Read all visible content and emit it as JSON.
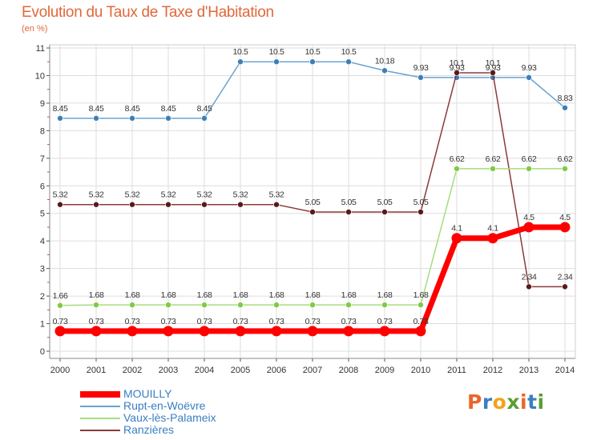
{
  "header": {
    "title": "Evolution du Taux de Taxe d'Habitation",
    "subtitle": "(en %)"
  },
  "logo": {
    "letters": [
      "P",
      "r",
      "o",
      "x",
      "i",
      "t",
      "i"
    ],
    "colors": [
      "#e8672a",
      "#3a7fc1",
      "#f0a31c",
      "#5a9e2f",
      "#e8672a",
      "#3a7fc1",
      "#5a9e2f"
    ]
  },
  "chart_data": {
    "type": "line",
    "title": "Evolution du Taux de Taxe d'Habitation",
    "subtitle": "(en %)",
    "xlabel": "",
    "ylabel": "",
    "x": [
      2000,
      2001,
      2002,
      2003,
      2004,
      2005,
      2006,
      2007,
      2008,
      2009,
      2010,
      2011,
      2012,
      2013,
      2014
    ],
    "x_tick_labels": [
      "2000",
      "2001",
      "2002",
      "2003",
      "2004",
      "2005",
      "2006",
      "2007",
      "2008",
      "2009",
      "2010",
      "2011",
      "2012",
      "2013",
      "2014"
    ],
    "ylim": [
      0,
      11
    ],
    "y_ticks": [
      0,
      1,
      2,
      3,
      4,
      5,
      6,
      7,
      8,
      9,
      10,
      11
    ],
    "y_tick_labels": [
      "0",
      "1",
      "2",
      "3",
      "4",
      "5",
      "6",
      "7",
      "8",
      "9",
      "10",
      "11"
    ],
    "grid": true,
    "legend_position": "bottom-left",
    "series": [
      {
        "name": "Rupt-en-Woëvre",
        "color": "#6aa3d2",
        "marker_color": "#3e7fb6",
        "values": [
          8.45,
          8.45,
          8.45,
          8.45,
          8.45,
          10.5,
          10.5,
          10.5,
          10.5,
          10.18,
          9.93,
          9.93,
          9.93,
          9.93,
          8.83
        ],
        "labels": [
          "8.45",
          "8.45",
          "8.45",
          "8.45",
          "8.45",
          "10.5",
          "10.5",
          "10.5",
          "10.5",
          "10.18",
          "9.93",
          "9.93",
          "9.93",
          "9.93",
          "8.83"
        ]
      },
      {
        "name": "Ranzières",
        "color": "#8b3a3a",
        "marker_color": "#5a1a1a",
        "values": [
          5.32,
          5.32,
          5.32,
          5.32,
          5.32,
          5.32,
          5.32,
          5.05,
          5.05,
          5.05,
          5.05,
          10.1,
          10.1,
          2.34,
          2.34
        ],
        "labels": [
          "5.32",
          "5.32",
          "5.32",
          "5.32",
          "5.32",
          "5.32",
          "5.32",
          "5.05",
          "5.05",
          "5.05",
          "5.05",
          "10.1",
          "10.1",
          "2.34",
          "2.34"
        ]
      },
      {
        "name": "Vaux-lès-Palameix",
        "color": "#a6dc7e",
        "marker_color": "#7fcb42",
        "values": [
          1.66,
          1.68,
          1.68,
          1.68,
          1.68,
          1.68,
          1.68,
          1.68,
          1.68,
          1.68,
          1.68,
          6.62,
          6.62,
          6.62,
          6.62
        ],
        "labels": [
          "1.66",
          "1.68",
          "1.68",
          "1.68",
          "1.68",
          "1.68",
          "1.68",
          "1.68",
          "1.68",
          "1.68",
          "1.68",
          "6.62",
          "6.62",
          "6.62",
          "6.62"
        ]
      },
      {
        "name": "MOUILLY",
        "color": "#ff0000",
        "marker_color": "#ff0000",
        "highlight": true,
        "values": [
          0.73,
          0.73,
          0.73,
          0.73,
          0.73,
          0.73,
          0.73,
          0.73,
          0.73,
          0.73,
          0.73,
          4.1,
          4.1,
          4.5,
          4.5
        ],
        "labels": [
          "0.73",
          "0.73",
          "0.73",
          "0.73",
          "0.73",
          "0.73",
          "0.73",
          "0.73",
          "0.73",
          "0.73",
          "0.73",
          "4.1",
          "4.1",
          "4.5",
          "4.5"
        ]
      }
    ],
    "legend": [
      {
        "name": "MOUILLY",
        "color": "#ff0000",
        "text_color": "#3a7fc1"
      },
      {
        "name": "Rupt-en-Woëvre",
        "color": "#6aa3d2",
        "text_color": "#3a7fc1"
      },
      {
        "name": "Vaux-lès-Palameix",
        "color": "#a6dc7e",
        "text_color": "#3a7fc1"
      },
      {
        "name": "Ranzières",
        "color": "#8b3a3a",
        "text_color": "#3a7fc1"
      }
    ]
  }
}
